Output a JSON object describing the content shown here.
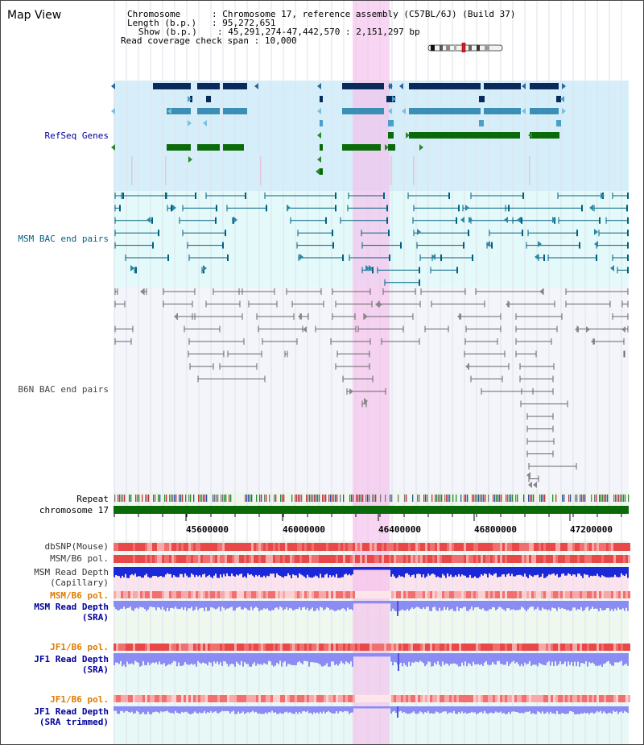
{
  "window": {
    "title": "Map View"
  },
  "info": {
    "chromosome_key": "Chromosome",
    "chromosome_value": "Chromosome 17, reference assembly (C57BL/6J) (Build 37)",
    "length_key": "Length (b.p.)",
    "length_value": "95,272,651",
    "show_key": "Show (b.p.)",
    "show_value": "45,291,274-47,442,570 : 2,151,297 bp",
    "coverage_key": "Read coverage check span",
    "coverage_value": "10,000"
  },
  "tracks": {
    "refseq": "RefSeq Genes",
    "msm_bac": "MSM BAC end pairs",
    "b6n_bac": "B6N BAC end pairs",
    "repeat": "Repeat",
    "chromosome": "chromosome 17",
    "dbsnp": "dbSNP(Mouse)",
    "msm_b6_pol": "MSM/B6 pol.",
    "msm_depth_cap_1": "MSM Read Depth",
    "msm_depth_cap_2": "(Capillary)",
    "msm_b6_pol_2": "MSM/B6 pol.",
    "msm_depth_sra_1": "MSM Read Depth",
    "msm_depth_sra_2": "(SRA)",
    "jf1_b6_pol": "JF1/B6 pol.",
    "jf1_depth_sra_1": "JF1 Read Depth",
    "jf1_depth_sra_2": "(SRA)",
    "jf1_b6_pol_2": "JF1/B6 pol.",
    "jf1_depth_trim_1": "JF1 Read Depth",
    "jf1_depth_trim_2": "(SRA trimmed)"
  },
  "axis": {
    "ticks": [
      "45600000",
      "46000000",
      "46400000",
      "46800000",
      "47200000"
    ]
  },
  "colors": {
    "refseq_bg": "#d6eef9",
    "msm_bg": "#e6f9fa",
    "b6n_bg": "#f4f5fa",
    "highlight": "#f5bceb",
    "gene_dark": "#0b2a5c",
    "gene_mid": "#3c8fb4",
    "gene_green": "#0b6b0b",
    "msm_line": "#006080",
    "b6n_line": "#555555",
    "label_blue": "#000099",
    "label_orange": "#e07b00"
  }
}
